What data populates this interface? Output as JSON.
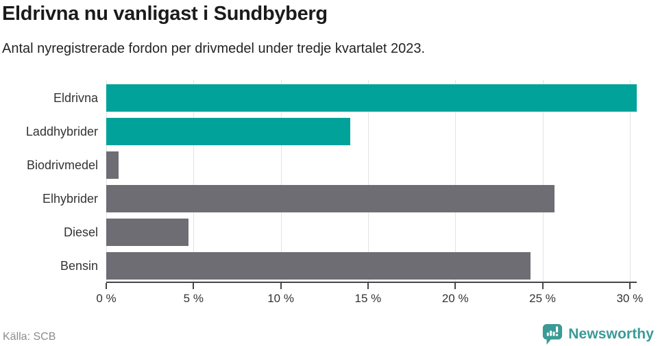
{
  "header": {
    "title": "Eldrivna nu vanligast i Sundbyberg",
    "subtitle": "Antal nyregistrerade fordon per drivmedel under tredje kvartalet 2023."
  },
  "chart_data": {
    "type": "bar",
    "orientation": "horizontal",
    "title": "Eldrivna nu vanligast i Sundbyberg",
    "subtitle": "Antal nyregistrerade fordon per drivmedel under tredje kvartalet 2023.",
    "categories": [
      "Eldrivna",
      "Laddhybrider",
      "Biodrivmedel",
      "Elhybrider",
      "Diesel",
      "Bensin"
    ],
    "values": [
      30.4,
      14.0,
      0.7,
      25.7,
      4.7,
      24.3
    ],
    "unit": "%",
    "bar_colors": [
      "#00a29a",
      "#00a29a",
      "#6d6d73",
      "#6d6d73",
      "#6d6d73",
      "#6d6d73"
    ],
    "xlabel": "",
    "ylabel": "",
    "xlim": [
      0,
      30.4
    ],
    "xticks": [
      0,
      5,
      10,
      15,
      20,
      25,
      30
    ],
    "xtick_labels": [
      "0 %",
      "5 %",
      "10 %",
      "15 %",
      "20 %",
      "25 %",
      "30 %"
    ],
    "grid": true,
    "legend": "none"
  },
  "colors": {
    "accent_teal": "#00a29a",
    "neutral_gray": "#6d6d73",
    "axis": "#454547",
    "gridline": "#e3e3e3",
    "brand_teal": "#3a9a96"
  },
  "footer": {
    "source": "Källa: SCB",
    "brand": "Newsworthy"
  }
}
